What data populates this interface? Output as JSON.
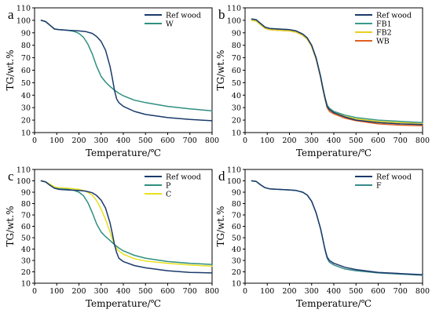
{
  "chart_data": [
    {
      "type": "line",
      "panel": "a",
      "xlabel": "Temperature/℃",
      "ylabel": "TG/wt.%",
      "xlim": [
        0,
        800
      ],
      "ylim": [
        10,
        110
      ],
      "xticks": [
        0,
        100,
        200,
        300,
        400,
        500,
        600,
        700,
        800
      ],
      "yticks": [
        10,
        20,
        30,
        40,
        50,
        60,
        70,
        80,
        90,
        100,
        110
      ],
      "legend_position": "top-right",
      "series": [
        {
          "name": "Ref wood",
          "color": "#1a3a6b",
          "x": [
            30,
            50,
            70,
            90,
            110,
            150,
            200,
            230,
            260,
            280,
            300,
            320,
            340,
            350,
            360,
            370,
            380,
            400,
            450,
            500,
            600,
            700,
            800
          ],
          "y": [
            100,
            99,
            96,
            93,
            92.5,
            92,
            91.5,
            91,
            89.5,
            87,
            83,
            76,
            63,
            54,
            44,
            37,
            34,
            31,
            27,
            24.5,
            22,
            20.5,
            19.5
          ]
        },
        {
          "name": "W",
          "color": "#2f8f7f",
          "x": [
            30,
            50,
            70,
            90,
            110,
            150,
            180,
            200,
            220,
            240,
            260,
            280,
            300,
            320,
            340,
            360,
            380,
            400,
            450,
            500,
            600,
            700,
            800
          ],
          "y": [
            100,
            99,
            96,
            93,
            92.5,
            92,
            91,
            89.5,
            86.5,
            81,
            73,
            63,
            55,
            50.5,
            47,
            44,
            41.5,
            39.5,
            36,
            34,
            31,
            29,
            27.5
          ]
        }
      ]
    },
    {
      "type": "line",
      "panel": "b",
      "xlabel": "Temperature/℃",
      "ylabel": "TG/wt.%",
      "xlim": [
        0,
        800
      ],
      "ylim": [
        10,
        110
      ],
      "xticks": [
        0,
        100,
        200,
        300,
        400,
        500,
        600,
        700,
        800
      ],
      "yticks": [
        10,
        20,
        30,
        40,
        50,
        60,
        70,
        80,
        90,
        100,
        110
      ],
      "legend_position": "top-right",
      "series": [
        {
          "name": "Ref wood",
          "color": "#1a3a6b",
          "x": [
            30,
            50,
            70,
            90,
            110,
            150,
            200,
            230,
            260,
            280,
            300,
            320,
            340,
            350,
            360,
            370,
            380,
            400,
            450,
            500,
            600,
            700,
            800
          ],
          "y": [
            101,
            100.5,
            97.5,
            94.5,
            93.5,
            93,
            92.5,
            91.5,
            89,
            86,
            80,
            70,
            55,
            46,
            38,
            31,
            28.5,
            26,
            22.5,
            20,
            18,
            17,
            16.5
          ]
        },
        {
          "name": "FB1",
          "color": "#3a9a8a",
          "x": [
            30,
            50,
            70,
            90,
            110,
            150,
            200,
            230,
            260,
            280,
            300,
            320,
            340,
            350,
            360,
            370,
            380,
            400,
            450,
            500,
            600,
            700,
            800
          ],
          "y": [
            101,
            100.5,
            97.5,
            94.5,
            93.5,
            93,
            92.5,
            91.5,
            89,
            86,
            80,
            70,
            55.5,
            46.5,
            38.5,
            32,
            29.5,
            27,
            24,
            22,
            20,
            19,
            18
          ]
        },
        {
          "name": "FB2",
          "color": "#e8d020",
          "x": [
            30,
            50,
            70,
            90,
            110,
            150,
            200,
            230,
            260,
            280,
            300,
            320,
            340,
            350,
            360,
            370,
            380,
            400,
            450,
            500,
            600,
            700,
            800
          ],
          "y": [
            100,
            99.5,
            96.5,
            93.5,
            92.5,
            92,
            91.5,
            90.5,
            88,
            85,
            79,
            69,
            54.5,
            45.5,
            37.5,
            31,
            28.5,
            26,
            23,
            21,
            19,
            18,
            17.5
          ]
        },
        {
          "name": "WB",
          "color": "#e06020",
          "x": [
            30,
            50,
            70,
            90,
            110,
            150,
            200,
            230,
            260,
            280,
            300,
            320,
            340,
            350,
            360,
            370,
            380,
            400,
            450,
            500,
            600,
            700,
            800
          ],
          "y": [
            100,
            99.5,
            96.5,
            93.5,
            92.5,
            92,
            91.5,
            90.5,
            88,
            85,
            79,
            69,
            54.5,
            45.5,
            37,
            30,
            27,
            25,
            21.5,
            19.5,
            17,
            16,
            15.5
          ]
        }
      ]
    },
    {
      "type": "line",
      "panel": "c",
      "xlabel": "Temperature/℃",
      "ylabel": "TG/wt.%",
      "xlim": [
        0,
        800
      ],
      "ylim": [
        10,
        110
      ],
      "xticks": [
        0,
        100,
        200,
        300,
        400,
        500,
        600,
        700,
        800
      ],
      "yticks": [
        10,
        20,
        30,
        40,
        50,
        60,
        70,
        80,
        90,
        100,
        110
      ],
      "legend_position": "top-right",
      "series": [
        {
          "name": "Ref wood",
          "color": "#1a3a6b",
          "x": [
            30,
            50,
            70,
            90,
            110,
            150,
            200,
            230,
            260,
            280,
            300,
            320,
            340,
            350,
            360,
            370,
            380,
            400,
            450,
            500,
            600,
            700,
            800
          ],
          "y": [
            100,
            99,
            96,
            93.5,
            92.5,
            92,
            91.5,
            91,
            89.5,
            87,
            83,
            76,
            63,
            54,
            44,
            37,
            32,
            29,
            25.5,
            23.5,
            21,
            19.5,
            19
          ]
        },
        {
          "name": "P",
          "color": "#2f8f7f",
          "x": [
            30,
            50,
            70,
            90,
            110,
            150,
            180,
            200,
            220,
            240,
            260,
            280,
            300,
            320,
            340,
            360,
            380,
            400,
            450,
            500,
            600,
            700,
            800
          ],
          "y": [
            100,
            99,
            96,
            93.5,
            93,
            92.5,
            91.5,
            90,
            87,
            81,
            72,
            62,
            55,
            51,
            47.5,
            44,
            41,
            38.5,
            34.5,
            32,
            29,
            27.5,
            26.5
          ]
        },
        {
          "name": "C",
          "color": "#e8e020",
          "x": [
            30,
            50,
            70,
            90,
            110,
            150,
            200,
            230,
            260,
            280,
            300,
            320,
            340,
            350,
            360,
            370,
            380,
            400,
            450,
            500,
            600,
            700,
            800
          ],
          "y": [
            100,
            99,
            97,
            94.5,
            94,
            93.5,
            92.5,
            91,
            87.5,
            82.5,
            75,
            66,
            55,
            49,
            44,
            40.5,
            38.5,
            35.5,
            31.5,
            29.5,
            27.5,
            26,
            25
          ]
        }
      ]
    },
    {
      "type": "line",
      "panel": "d",
      "xlabel": "Temperature/℃",
      "ylabel": "TG/wt.%",
      "xlim": [
        0,
        800
      ],
      "ylim": [
        10,
        110
      ],
      "xticks": [
        0,
        100,
        200,
        300,
        400,
        500,
        600,
        700,
        800
      ],
      "yticks": [
        10,
        20,
        30,
        40,
        50,
        60,
        70,
        80,
        90,
        100,
        110
      ],
      "legend_position": "top-right",
      "series": [
        {
          "name": "Ref wood",
          "color": "#1a3a6b",
          "x": [
            30,
            50,
            70,
            90,
            110,
            150,
            200,
            230,
            260,
            280,
            300,
            320,
            340,
            350,
            360,
            370,
            380,
            400,
            450,
            500,
            600,
            700,
            800
          ],
          "y": [
            100,
            99.5,
            96.5,
            94,
            93,
            92.5,
            92,
            91.5,
            90,
            87.5,
            82,
            72,
            58,
            49,
            40,
            33,
            30,
            27.5,
            24,
            22,
            19.5,
            18.5,
            17.5
          ]
        },
        {
          "name": "F",
          "color": "#3a8a8a",
          "x": [
            30,
            50,
            70,
            90,
            110,
            150,
            200,
            230,
            260,
            280,
            300,
            320,
            340,
            350,
            360,
            370,
            380,
            400,
            450,
            500,
            600,
            700,
            800
          ],
          "y": [
            100,
            99.5,
            96.5,
            94,
            93,
            92.5,
            92,
            91.5,
            90,
            87.5,
            82,
            72,
            58,
            49,
            39.5,
            32,
            28.5,
            26,
            22.5,
            21,
            19,
            18,
            17
          ]
        }
      ]
    }
  ]
}
